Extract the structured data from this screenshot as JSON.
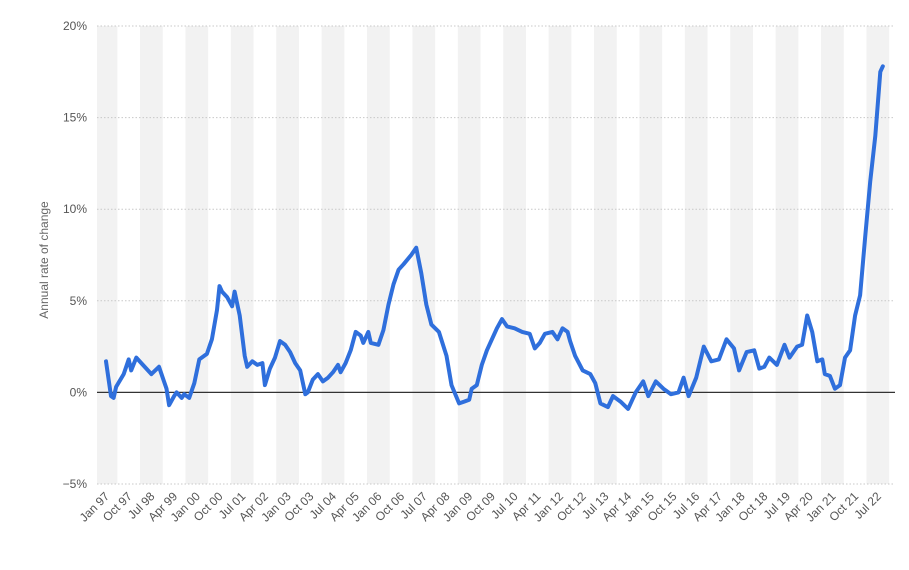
{
  "chart_data": {
    "type": "line",
    "ylabel": "Annual rate of change",
    "y_unit": "%",
    "ylim": [
      -5,
      20
    ],
    "y_ticks": [
      20,
      15,
      10,
      5,
      0,
      -5
    ],
    "y_tick_labels": [
      "20%",
      "15%",
      "10%",
      "5%",
      "0%",
      "−5%"
    ],
    "grid": "horizontal dotted",
    "x_tick_labels": [
      "Jan 97",
      "Oct 97",
      "Jul 98",
      "Apr 99",
      "Jan 00",
      "Oct 00",
      "Jul 01",
      "Apr 02",
      "Jan 03",
      "Oct 03",
      "Jul 04",
      "Apr 05",
      "Jan 06",
      "Oct 06",
      "Jul 07",
      "Apr 08",
      "Jan 09",
      "Oct 09",
      "Jul 10",
      "Apr 11",
      "Jan 12",
      "Oct 12",
      "Jul 13",
      "Apr 14",
      "Jan 15",
      "Oct 15",
      "Jul 16",
      "Apr 17",
      "Jan 18",
      "Oct 18",
      "Jul 19",
      "Apr 20",
      "Jan 21",
      "Oct 21",
      "Jul 22"
    ],
    "series": [
      {
        "color": "#2f6fdc",
        "points": [
          [
            "Jan 97",
            1.7
          ],
          [
            "Mar 97",
            -0.2
          ],
          [
            "Apr 97",
            -0.3
          ],
          [
            "May 97",
            0.3
          ],
          [
            "Aug 97",
            1.0
          ],
          [
            "Oct 97",
            1.8
          ],
          [
            "Nov 97",
            1.2
          ],
          [
            "Jan 98",
            1.9
          ],
          [
            "Mar 98",
            1.6
          ],
          [
            "Jul 98",
            1.0
          ],
          [
            "Oct 98",
            1.4
          ],
          [
            "Jan 99",
            0.2
          ],
          [
            "Feb 99",
            -0.7
          ],
          [
            "Apr 99",
            -0.2
          ],
          [
            "May 99",
            0.0
          ],
          [
            "Jul 99",
            -0.3
          ],
          [
            "Aug 99",
            -0.1
          ],
          [
            "Oct 99",
            -0.3
          ],
          [
            "Dec 99",
            0.5
          ],
          [
            "Feb 00",
            1.8
          ],
          [
            "May 00",
            2.1
          ],
          [
            "Jul 00",
            2.9
          ],
          [
            "Sep 00",
            4.5
          ],
          [
            "Oct 00",
            5.8
          ],
          [
            "Nov 00",
            5.5
          ],
          [
            "Jan 01",
            5.2
          ],
          [
            "Mar 01",
            4.7
          ],
          [
            "Apr 01",
            5.5
          ],
          [
            "Jun 01",
            4.2
          ],
          [
            "Aug 01",
            2.0
          ],
          [
            "Sep 01",
            1.4
          ],
          [
            "Nov 01",
            1.7
          ],
          [
            "Jan 02",
            1.5
          ],
          [
            "Mar 02",
            1.6
          ],
          [
            "Apr 02",
            0.4
          ],
          [
            "Jun 02",
            1.3
          ],
          [
            "Aug 02",
            1.9
          ],
          [
            "Oct 02",
            2.8
          ],
          [
            "Dec 02",
            2.6
          ],
          [
            "Feb 03",
            2.2
          ],
          [
            "Apr 03",
            1.6
          ],
          [
            "Jun 03",
            1.2
          ],
          [
            "Aug 03",
            -0.1
          ],
          [
            "Sep 03",
            0.0
          ],
          [
            "Nov 03",
            0.7
          ],
          [
            "Jan 04",
            1.0
          ],
          [
            "Mar 04",
            0.6
          ],
          [
            "May 04",
            0.8
          ],
          [
            "Jul 04",
            1.1
          ],
          [
            "Sep 04",
            1.5
          ],
          [
            "Oct 04",
            1.1
          ],
          [
            "Dec 04",
            1.6
          ],
          [
            "Feb 05",
            2.3
          ],
          [
            "Apr 05",
            3.3
          ],
          [
            "Jun 05",
            3.1
          ],
          [
            "Jul 05",
            2.7
          ],
          [
            "Sep 05",
            3.3
          ],
          [
            "Oct 05",
            2.7
          ],
          [
            "Jan 06",
            2.6
          ],
          [
            "Mar 06",
            3.4
          ],
          [
            "May 06",
            4.8
          ],
          [
            "Jul 06",
            5.9
          ],
          [
            "Sep 06",
            6.7
          ],
          [
            "Nov 06",
            7.0
          ],
          [
            "Feb 07",
            7.5
          ],
          [
            "Apr 07",
            7.9
          ],
          [
            "Jun 07",
            6.5
          ],
          [
            "Aug 07",
            4.8
          ],
          [
            "Oct 07",
            3.7
          ],
          [
            "Jan 08",
            3.3
          ],
          [
            "Apr 08",
            2.0
          ],
          [
            "Jun 08",
            0.4
          ],
          [
            "Sep 08",
            -0.6
          ],
          [
            "Nov 08",
            -0.5
          ],
          [
            "Jan 09",
            -0.4
          ],
          [
            "Feb 09",
            0.2
          ],
          [
            "Apr 09",
            0.4
          ],
          [
            "Jun 09",
            1.5
          ],
          [
            "Aug 09",
            2.3
          ],
          [
            "Oct 09",
            2.9
          ],
          [
            "Dec 09",
            3.5
          ],
          [
            "Feb 10",
            4.0
          ],
          [
            "Apr 10",
            3.6
          ],
          [
            "Jul 10",
            3.5
          ],
          [
            "Oct 10",
            3.3
          ],
          [
            "Jan 11",
            3.2
          ],
          [
            "Mar 11",
            2.4
          ],
          [
            "May 11",
            2.7
          ],
          [
            "Jul 11",
            3.2
          ],
          [
            "Oct 11",
            3.3
          ],
          [
            "Dec 11",
            2.9
          ],
          [
            "Feb 12",
            3.5
          ],
          [
            "Apr 12",
            3.3
          ],
          [
            "May 12",
            2.8
          ],
          [
            "Jul 12",
            2.0
          ],
          [
            "Oct 12",
            1.2
          ],
          [
            "Jan 13",
            1.0
          ],
          [
            "Mar 13",
            0.5
          ],
          [
            "May 13",
            -0.6
          ],
          [
            "Aug 13",
            -0.8
          ],
          [
            "Oct 13",
            -0.2
          ],
          [
            "Jan 14",
            -0.5
          ],
          [
            "Apr 14",
            -0.9
          ],
          [
            "Jul 14",
            0.0
          ],
          [
            "Oct 14",
            0.6
          ],
          [
            "Dec 14",
            -0.2
          ],
          [
            "Mar 15",
            0.6
          ],
          [
            "Jun 15",
            0.2
          ],
          [
            "Sep 15",
            -0.1
          ],
          [
            "Dec 15",
            0.0
          ],
          [
            "Feb 16",
            0.8
          ],
          [
            "Apr 16",
            -0.2
          ],
          [
            "Jul 16",
            0.8
          ],
          [
            "Oct 16",
            2.5
          ],
          [
            "Jan 17",
            1.7
          ],
          [
            "Apr 17",
            1.8
          ],
          [
            "Jul 17",
            2.9
          ],
          [
            "Oct 17",
            2.4
          ],
          [
            "Dec 17",
            1.2
          ],
          [
            "Mar 18",
            2.2
          ],
          [
            "Jun 18",
            2.3
          ],
          [
            "Aug 18",
            1.3
          ],
          [
            "Oct 18",
            1.4
          ],
          [
            "Dec 18",
            1.9
          ],
          [
            "Mar 19",
            1.5
          ],
          [
            "Jun 19",
            2.6
          ],
          [
            "Aug 19",
            1.9
          ],
          [
            "Nov 19",
            2.5
          ],
          [
            "Jan 20",
            2.6
          ],
          [
            "Mar 20",
            4.2
          ],
          [
            "May 20",
            3.3
          ],
          [
            "Jul 20",
            1.7
          ],
          [
            "Sep 20",
            1.8
          ],
          [
            "Oct 20",
            1.0
          ],
          [
            "Dec 20",
            0.9
          ],
          [
            "Feb 21",
            0.2
          ],
          [
            "Apr 21",
            0.4
          ],
          [
            "Jun 21",
            1.9
          ],
          [
            "Aug 21",
            2.3
          ],
          [
            "Oct 21",
            4.2
          ],
          [
            "Dec 21",
            5.3
          ],
          [
            "Feb 22",
            8.5
          ],
          [
            "Apr 22",
            11.5
          ],
          [
            "Jun 22",
            14.0
          ],
          [
            "Aug 22",
            17.5
          ],
          [
            "Sep 22",
            17.8
          ]
        ]
      }
    ]
  },
  "colors": {
    "line": "#2f6fdc",
    "band": "#f2f2f2",
    "grid": "#c8c8c8",
    "zero_line": "#333333",
    "tick_text": "#555555"
  }
}
